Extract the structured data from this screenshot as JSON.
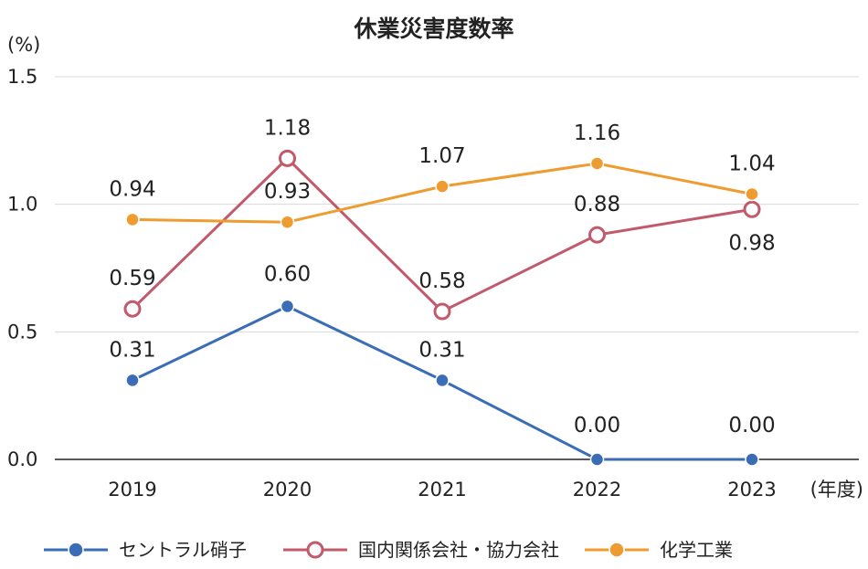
{
  "chart_data": {
    "type": "line",
    "title": "休業災害度数率",
    "ylabel": "(%)",
    "xlabel": "(年度)",
    "x": [
      "2019",
      "2020",
      "2021",
      "2022",
      "2023"
    ],
    "ylim": [
      0,
      1.5
    ],
    "yticks": [
      "0.0",
      "0.5",
      "1.0",
      "1.5"
    ],
    "ytick_values": [
      0,
      0.5,
      1.0,
      1.5
    ],
    "grid": true,
    "legend_position": "bottom",
    "series": [
      {
        "name": "セントラル硝子",
        "values": [
          0.31,
          0.6,
          0.31,
          0.0,
          0.0
        ],
        "labels": [
          "0.31",
          "0.60",
          "0.31",
          "0.00",
          "0.00"
        ],
        "color": "#3a6db5",
        "marker": "filled-circle"
      },
      {
        "name": "国内関係会社・協力会社",
        "values": [
          0.59,
          1.18,
          0.58,
          0.88,
          0.98
        ],
        "labels": [
          "0.59",
          "1.18",
          "0.58",
          "0.88",
          "0.98"
        ],
        "color": "#c15a6b",
        "marker": "hollow-circle"
      },
      {
        "name": "化学工業",
        "values": [
          0.94,
          0.93,
          1.07,
          1.16,
          1.04
        ],
        "labels": [
          "0.94",
          "0.93",
          "1.07",
          "1.16",
          "1.04"
        ],
        "color": "#ee9b2f",
        "marker": "filled-circle"
      }
    ]
  }
}
